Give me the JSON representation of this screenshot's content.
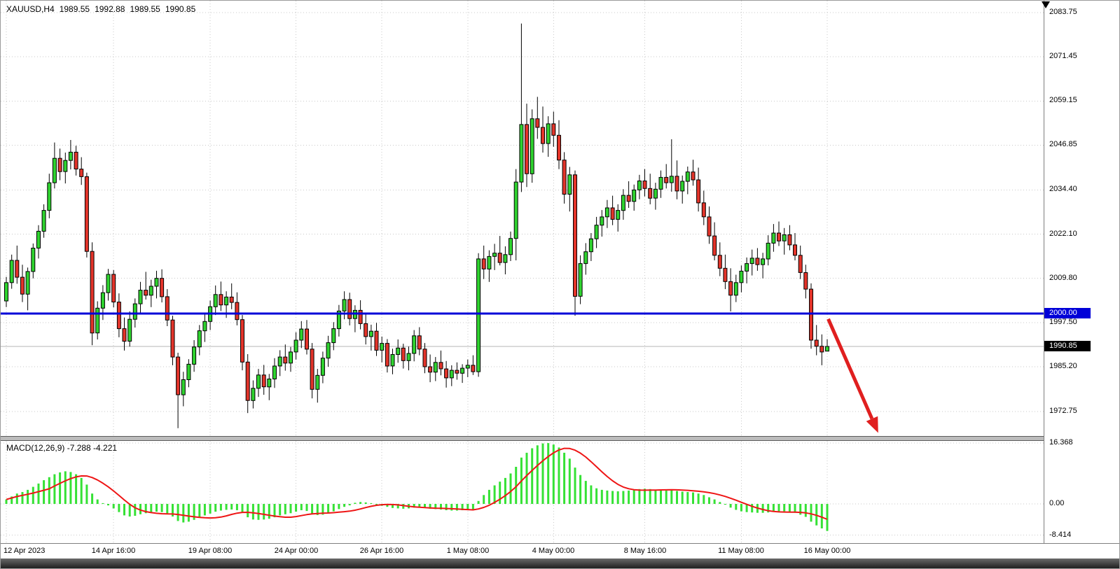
{
  "header": {
    "symbol_period": "XAUUSD,H4",
    "open": "1989.55",
    "high": "1992.88",
    "low": "1989.55",
    "close": "1990.85"
  },
  "price_axis": {
    "line_label": "2000.00",
    "line_value": 2000.0,
    "current_label": "1990.85",
    "current_value": 1990.85
  },
  "macd": {
    "label": "MACD(12,26,9) -7.288 -4.221",
    "scale": [
      {
        "text": "16.368",
        "value": 16.368
      },
      {
        "text": "0.00",
        "value": 0
      },
      {
        "text": "-8.414",
        "value": -8.414
      }
    ]
  },
  "colors": {
    "bull": "#2fd32f",
    "bear": "#e3342a",
    "outline": "#000000",
    "grid": "#c9c9c9",
    "hline": "#0000d8",
    "current_line": "#b4b4b4",
    "arrow": "#e01f1f",
    "macd_hist": "#35e135",
    "signal": "#ee1515",
    "badge_line": "#0000d8",
    "badge_price": "#000000"
  },
  "annotations": {
    "trend_arrow": {
      "from_i": 153.2,
      "from_price": 1998.5,
      "to_i": 162.5,
      "to_price": 1966.8
    }
  },
  "chart_data": {
    "type": "candlestick",
    "symbol": "XAUUSD",
    "timeframe": "H4",
    "title": "XAUUSD,H4 gold price chart with MACD(12,26,9) and 2000.00 support line broken, red arrow pointing down",
    "price_ylim": [
      1965.5,
      2086.8
    ],
    "macd_ylim": [
      -10.5,
      17.0
    ],
    "price_gridlines": [
      2083.75,
      2071.45,
      2059.15,
      2046.85,
      2034.4,
      2022.1,
      2009.8,
      1997.5,
      1985.2,
      1972.75
    ],
    "current_price": 1990.85,
    "indicator": {
      "name": "MACD",
      "params": [
        12,
        26,
        9
      ],
      "macd_value": -7.288,
      "signal_value": -4.221,
      "signal_period": 9
    },
    "time_labels": [
      {
        "text": "12 Apr 2023",
        "i": 0
      },
      {
        "text": "14 Apr 16:00",
        "i": 20
      },
      {
        "text": "19 Apr 08:00",
        "i": 38
      },
      {
        "text": "24 Apr 00:00",
        "i": 54
      },
      {
        "text": "26 Apr 16:00",
        "i": 70
      },
      {
        "text": "1 May 08:00",
        "i": 86
      },
      {
        "text": "4 May 00:00",
        "i": 102
      },
      {
        "text": "8 May 16:00",
        "i": 119
      },
      {
        "text": "11 May 08:00",
        "i": 137
      },
      {
        "text": "16 May 00:00",
        "i": 153
      }
    ],
    "candles": [
      [
        2003.5,
        2010.2,
        2001.8,
        2008.6
      ],
      [
        2008.6,
        2016.4,
        2006.9,
        2014.8
      ],
      [
        2014.8,
        2018.9,
        2008.3,
        2010.1
      ],
      [
        2010.1,
        2013.6,
        2003.2,
        2005.4
      ],
      [
        2005.4,
        2012.8,
        2000.9,
        2011.7
      ],
      [
        2011.7,
        2019.5,
        2009.8,
        2018.2
      ],
      [
        2018.2,
        2024.6,
        2015.3,
        2022.9
      ],
      [
        2022.9,
        2030.4,
        2021.1,
        2028.7
      ],
      [
        2028.7,
        2038.9,
        2026.5,
        2036.4
      ],
      [
        2036.4,
        2047.6,
        2034.8,
        2043.2
      ],
      [
        2043.2,
        2045.9,
        2037.1,
        2039.5
      ],
      [
        2039.5,
        2044.8,
        2036.2,
        2042.6
      ],
      [
        2042.6,
        2048.3,
        2040.1,
        2044.9
      ],
      [
        2044.9,
        2046.7,
        2038.4,
        2040.2
      ],
      [
        2040.2,
        2043.5,
        2035.8,
        2038.1
      ],
      [
        2038.1,
        2039.2,
        2015.6,
        2017.3
      ],
      [
        2017.3,
        2019.8,
        1991.2,
        1994.6
      ],
      [
        1994.6,
        2003.4,
        1992.8,
        2001.5
      ],
      [
        2001.5,
        2007.9,
        1998.2,
        2005.8
      ],
      [
        2005.8,
        2012.4,
        2003.6,
        2010.9
      ],
      [
        2010.9,
        2012.1,
        2001.7,
        2003.2
      ],
      [
        2003.2,
        2005.6,
        1993.4,
        1995.8
      ],
      [
        1995.8,
        1998.9,
        1989.7,
        1992.3
      ],
      [
        1992.3,
        2000.6,
        1990.8,
        1998.4
      ],
      [
        1998.4,
        2004.2,
        1996.1,
        2002.7
      ],
      [
        2002.7,
        2008.8,
        2000.3,
        2006.5
      ],
      [
        2006.5,
        2011.6,
        2003.9,
        2005.1
      ],
      [
        2005.1,
        2009.4,
        2001.8,
        2007.6
      ],
      [
        2007.6,
        2011.9,
        2004.2,
        2009.8
      ],
      [
        2009.8,
        2012.3,
        2003.1,
        2004.7
      ],
      [
        2004.7,
        2006.8,
        1996.5,
        1998.2
      ],
      [
        1998.2,
        1999.4,
        1985.6,
        1987.9
      ],
      [
        1987.9,
        1989.1,
        1968.1,
        1977.4
      ],
      [
        1977.4,
        1983.8,
        1974.2,
        1981.6
      ],
      [
        1981.6,
        1987.3,
        1979.5,
        1985.9
      ],
      [
        1985.9,
        1992.6,
        1983.8,
        1990.7
      ],
      [
        1990.7,
        1996.8,
        1988.4,
        1995.2
      ],
      [
        1995.2,
        1999.7,
        1992.1,
        1997.8
      ],
      [
        1997.8,
        2003.6,
        1995.4,
        2001.9
      ],
      [
        2001.9,
        2007.8,
        1999.6,
        2005.3
      ],
      [
        2005.3,
        2008.9,
        2000.7,
        2002.4
      ],
      [
        2002.4,
        2006.2,
        1998.8,
        2004.6
      ],
      [
        2004.6,
        2008.4,
        2001.2,
        2003.1
      ],
      [
        2003.1,
        2005.9,
        1996.7,
        1998.3
      ],
      [
        1998.3,
        1999.6,
        1984.2,
        1986.5
      ],
      [
        1986.5,
        1988.7,
        1972.3,
        1975.8
      ],
      [
        1975.8,
        1981.4,
        1973.6,
        1979.2
      ],
      [
        1979.2,
        1984.6,
        1976.8,
        1982.9
      ],
      [
        1982.9,
        1985.7,
        1977.4,
        1979.6
      ],
      [
        1979.6,
        1983.2,
        1975.9,
        1981.8
      ],
      [
        1981.8,
        1987.6,
        1979.3,
        1985.4
      ],
      [
        1985.4,
        1989.8,
        1982.6,
        1987.9
      ],
      [
        1987.9,
        1991.4,
        1984.1,
        1986.2
      ],
      [
        1986.2,
        1990.7,
        1983.8,
        1989.3
      ],
      [
        1989.3,
        1994.8,
        1987.2,
        1992.6
      ],
      [
        1992.6,
        1997.9,
        1990.4,
        1995.7
      ],
      [
        1995.7,
        1998.2,
        1988.6,
        1990.1
      ],
      [
        1990.1,
        1991.8,
        1976.4,
        1978.9
      ],
      [
        1978.9,
        1984.6,
        1975.2,
        1982.8
      ],
      [
        1982.8,
        1989.4,
        1980.6,
        1987.6
      ],
      [
        1987.6,
        1993.8,
        1985.2,
        1991.9
      ],
      [
        1991.9,
        1997.6,
        1989.8,
        1995.8
      ],
      [
        1995.8,
        2002.4,
        1993.6,
        2000.7
      ],
      [
        2000.7,
        2006.2,
        1998.4,
        2003.9
      ],
      [
        2003.9,
        2005.8,
        1996.7,
        1998.6
      ],
      [
        1998.6,
        2002.3,
        1994.8,
        2000.9
      ],
      [
        2000.9,
        2003.7,
        1995.6,
        1997.2
      ],
      [
        1997.2,
        1999.8,
        1991.4,
        1993.6
      ],
      [
        1993.6,
        1996.9,
        1989.7,
        1995.1
      ],
      [
        1995.1,
        1997.4,
        1988.2,
        1989.8
      ],
      [
        1989.8,
        1993.6,
        1986.4,
        1991.7
      ],
      [
        1991.7,
        1992.9,
        1983.6,
        1985.4
      ],
      [
        1985.4,
        1990.2,
        1983.1,
        1988.6
      ],
      [
        1988.6,
        1992.8,
        1986.3,
        1990.4
      ],
      [
        1990.4,
        1991.6,
        1984.7,
        1986.9
      ],
      [
        1986.9,
        1990.8,
        1984.2,
        1988.9
      ],
      [
        1988.9,
        1995.4,
        1986.7,
        1993.8
      ],
      [
        1993.8,
        1996.2,
        1988.4,
        1990.1
      ],
      [
        1990.1,
        1991.8,
        1983.4,
        1985.2
      ],
      [
        1985.2,
        1988.6,
        1980.9,
        1983.7
      ],
      [
        1983.7,
        1987.9,
        1981.2,
        1986.4
      ],
      [
        1986.4,
        1989.7,
        1982.8,
        1984.6
      ],
      [
        1984.6,
        1986.8,
        1979.4,
        1982.1
      ],
      [
        1982.1,
        1985.6,
        1979.8,
        1984.2
      ],
      [
        1984.2,
        1986.4,
        1981.6,
        1983.4
      ],
      [
        1983.4,
        1985.9,
        1980.7,
        1984.8
      ],
      [
        1984.8,
        1987.2,
        1982.3,
        1985.6
      ],
      [
        1985.6,
        1988.4,
        1982.9,
        1983.8
      ],
      [
        1983.8,
        2016.8,
        1982.4,
        2015.2
      ],
      [
        2015.2,
        2018.9,
        2009.6,
        2012.4
      ],
      [
        2012.4,
        2017.6,
        2008.8,
        2015.9
      ],
      [
        2015.9,
        2019.4,
        2012.1,
        2016.8
      ],
      [
        2016.8,
        2021.6,
        2013.4,
        2014.2
      ],
      [
        2014.2,
        2018.7,
        2010.9,
        2016.4
      ],
      [
        2016.4,
        2022.8,
        2014.6,
        2020.9
      ],
      [
        2020.9,
        2040.2,
        2014.8,
        2036.6
      ],
      [
        2036.6,
        2080.7,
        2033.8,
        2052.6
      ],
      [
        2052.6,
        2058.4,
        2035.2,
        2038.9
      ],
      [
        2038.9,
        2056.8,
        2036.4,
        2054.2
      ],
      [
        2054.2,
        2060.3,
        2048.6,
        2051.8
      ],
      [
        2051.8,
        2057.6,
        2044.8,
        2047.3
      ],
      [
        2047.3,
        2054.9,
        2043.6,
        2052.8
      ],
      [
        2052.8,
        2056.2,
        2046.4,
        2049.6
      ],
      [
        2049.6,
        2053.8,
        2040.2,
        2042.7
      ],
      [
        2042.7,
        2044.9,
        2030.6,
        2033.2
      ],
      [
        2033.2,
        2040.8,
        2028.4,
        2038.6
      ],
      [
        2038.6,
        2039.8,
        1999.4,
        2004.8
      ],
      [
        2004.8,
        2016.2,
        2002.6,
        2013.9
      ],
      [
        2013.9,
        2019.6,
        2010.8,
        2017.2
      ],
      [
        2017.2,
        2022.4,
        2014.6,
        2020.8
      ],
      [
        2020.8,
        2026.9,
        2018.2,
        2024.6
      ],
      [
        2024.6,
        2028.8,
        2021.4,
        2026.9
      ],
      [
        2026.9,
        2031.6,
        2023.8,
        2029.4
      ],
      [
        2029.4,
        2032.8,
        2024.6,
        2026.2
      ],
      [
        2026.2,
        2030.4,
        2022.8,
        2028.7
      ],
      [
        2028.7,
        2034.6,
        2026.1,
        2032.9
      ],
      [
        2032.9,
        2036.8,
        2029.4,
        2031.2
      ],
      [
        2031.2,
        2035.9,
        2028.6,
        2034.4
      ],
      [
        2034.4,
        2038.6,
        2031.8,
        2036.9
      ],
      [
        2036.9,
        2040.2,
        2032.6,
        2034.8
      ],
      [
        2034.8,
        2038.9,
        2030.4,
        2032.1
      ],
      [
        2032.1,
        2036.4,
        2028.9,
        2034.6
      ],
      [
        2034.6,
        2039.8,
        2032.2,
        2037.9
      ],
      [
        2037.9,
        2041.6,
        2034.8,
        2036.4
      ],
      [
        2036.4,
        2048.5,
        2033.9,
        2038.2
      ],
      [
        2038.2,
        2042.6,
        2031.8,
        2034.1
      ],
      [
        2034.1,
        2038.4,
        2030.6,
        2036.8
      ],
      [
        2036.8,
        2040.9,
        2033.2,
        2039.4
      ],
      [
        2039.4,
        2042.8,
        2035.6,
        2037.2
      ],
      [
        2037.2,
        2040.6,
        2028.4,
        2030.8
      ],
      [
        2030.8,
        2034.2,
        2024.6,
        2026.9
      ],
      [
        2026.9,
        2029.8,
        2019.4,
        2021.6
      ],
      [
        2021.6,
        2025.4,
        2014.8,
        2016.2
      ],
      [
        2016.2,
        2019.8,
        2010.4,
        2012.6
      ],
      [
        2012.6,
        2016.4,
        2006.8,
        2008.9
      ],
      [
        2008.9,
        2012.6,
        2000.6,
        2005.1
      ],
      [
        2005.1,
        2010.8,
        2003.2,
        2008.6
      ],
      [
        2008.6,
        2013.4,
        2005.9,
        2011.8
      ],
      [
        2011.8,
        2015.6,
        2008.4,
        2013.9
      ],
      [
        2013.9,
        2017.8,
        2010.6,
        2015.4
      ],
      [
        2015.4,
        2018.2,
        2011.9,
        2013.6
      ],
      [
        2013.6,
        2016.9,
        2009.8,
        2015.2
      ],
      [
        2015.2,
        2021.8,
        2013.4,
        2019.6
      ],
      [
        2019.6,
        2024.9,
        2017.2,
        2022.4
      ],
      [
        2022.4,
        2025.6,
        2018.8,
        2020.2
      ],
      [
        2020.2,
        2023.8,
        2016.4,
        2021.9
      ],
      [
        2021.9,
        2024.6,
        2017.6,
        2019.1
      ],
      [
        2019.1,
        2022.4,
        2014.8,
        2016.2
      ],
      [
        2016.2,
        2018.9,
        2009.6,
        2011.4
      ],
      [
        2011.4,
        2013.6,
        2004.2,
        2006.8
      ],
      [
        2006.8,
        2008.4,
        1990.2,
        1992.6
      ],
      [
        1992.6,
        1996.8,
        1988.4,
        1990.9
      ],
      [
        1990.9,
        1994.2,
        1985.6,
        1989.3
      ],
      [
        1989.55,
        1992.88,
        1989.55,
        1990.85
      ]
    ],
    "macd_histogram": [
      1.2,
      2.0,
      2.8,
      3.2,
      3.8,
      4.6,
      5.5,
      6.4,
      7.2,
      8.0,
      8.5,
      8.8,
      8.6,
      8.0,
      7.0,
      5.2,
      2.8,
      1.2,
      0.2,
      -0.4,
      -1.2,
      -2.2,
      -3.1,
      -3.4,
      -3.2,
      -2.8,
      -2.5,
      -2.3,
      -2.1,
      -2.2,
      -2.6,
      -3.4,
      -4.6,
      -5.0,
      -4.8,
      -4.3,
      -3.7,
      -3.1,
      -2.6,
      -2.1,
      -1.8,
      -1.6,
      -1.5,
      -1.7,
      -2.4,
      -3.6,
      -4.2,
      -4.3,
      -4.2,
      -4.0,
      -3.6,
      -3.1,
      -2.8,
      -2.5,
      -2.1,
      -1.7,
      -1.9,
      -2.6,
      -3.0,
      -2.9,
      -2.5,
      -2.0,
      -1.4,
      -0.8,
      -0.4,
      0.3,
      0.5,
      0.4,
      0.2,
      -0.2,
      -0.5,
      -0.8,
      -1.1,
      -1.2,
      -1.3,
      -1.2,
      -1.0,
      -0.8,
      -1.0,
      -1.3,
      -1.4,
      -1.5,
      -1.7,
      -1.8,
      -1.8,
      -1.7,
      -1.6,
      -1.6,
      0.8,
      2.4,
      3.8,
      5.0,
      6.0,
      7.0,
      8.2,
      10.0,
      12.5,
      13.8,
      15.0,
      15.8,
      16.3,
      16.4,
      16.0,
      15.2,
      13.8,
      12.2,
      9.8,
      7.8,
      6.2,
      5.0,
      4.2,
      3.8,
      3.6,
      3.5,
      3.4,
      3.5,
      3.6,
      3.8,
      4.0,
      4.1,
      4.0,
      3.8,
      3.7,
      3.6,
      3.7,
      3.5,
      3.3,
      3.2,
      3.1,
      2.8,
      2.4,
      1.8,
      1.2,
      0.5,
      -0.2,
      -1.0,
      -1.6,
      -2.0,
      -2.2,
      -2.3,
      -2.4,
      -2.4,
      -2.3,
      -2.1,
      -2.0,
      -2.0,
      -2.1,
      -2.4,
      -2.9,
      -3.5,
      -4.8,
      -5.8,
      -6.6,
      -7.288
    ]
  }
}
